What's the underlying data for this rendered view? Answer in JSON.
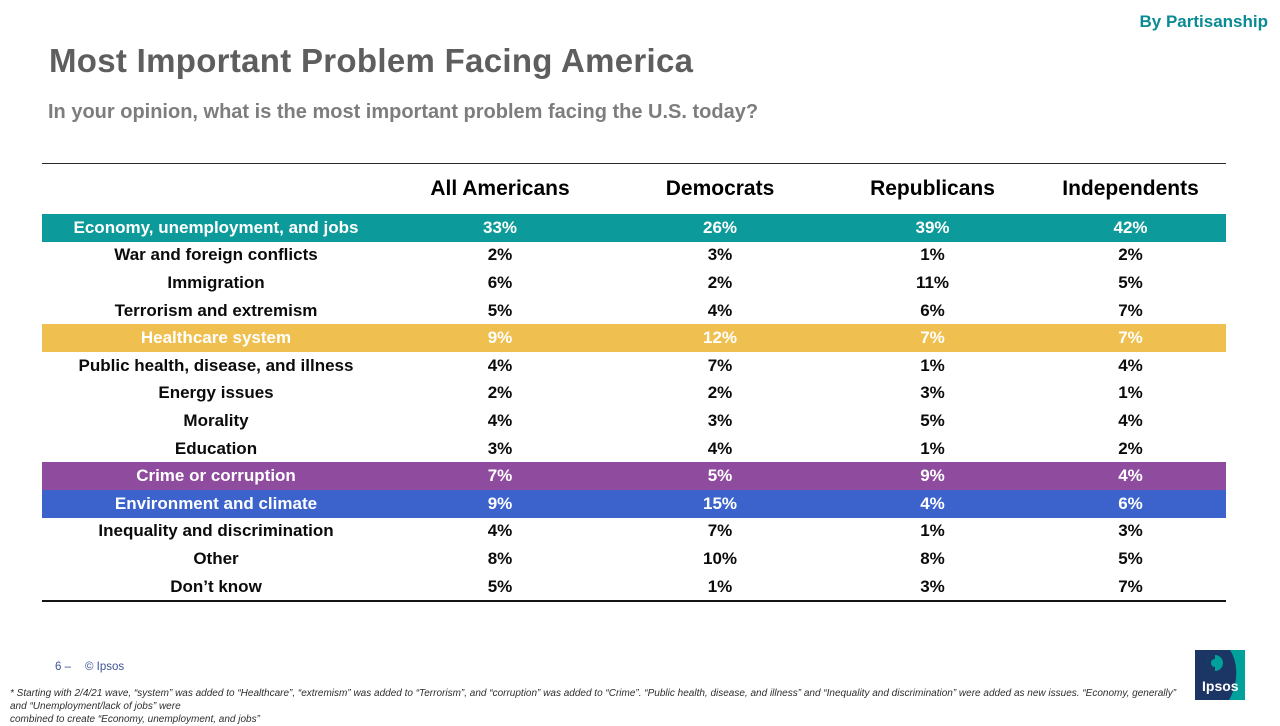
{
  "badge": {
    "label": "By Partisanship"
  },
  "header": {
    "title": "Most Important Problem Facing America",
    "subtitle": "In your opinion, what is the most important problem facing the U.S. today?"
  },
  "chart_data": {
    "type": "table",
    "title": "Most Important Problem Facing America",
    "columns": [
      "All Americans",
      "Democrats",
      "Republicans",
      "Independents"
    ],
    "rows": [
      {
        "label": "Economy, unemployment, and jobs",
        "values": [
          "33%",
          "26%",
          "39%",
          "42%"
        ],
        "highlight": "#0C9B9A"
      },
      {
        "label": "War and foreign conflicts",
        "values": [
          "2%",
          "3%",
          "1%",
          "2%"
        ],
        "highlight": null
      },
      {
        "label": "Immigration",
        "values": [
          "6%",
          "2%",
          "11%",
          "5%"
        ],
        "highlight": null
      },
      {
        "label": "Terrorism and extremism",
        "values": [
          "5%",
          "4%",
          "6%",
          "7%"
        ],
        "highlight": null
      },
      {
        "label": "Healthcare system",
        "values": [
          "9%",
          "12%",
          "7%",
          "7%"
        ],
        "highlight": "#EFC04F"
      },
      {
        "label": "Public health, disease, and illness",
        "values": [
          "4%",
          "7%",
          "1%",
          "4%"
        ],
        "highlight": null
      },
      {
        "label": "Energy issues",
        "values": [
          "2%",
          "2%",
          "3%",
          "1%"
        ],
        "highlight": null
      },
      {
        "label": "Morality",
        "values": [
          "4%",
          "3%",
          "5%",
          "4%"
        ],
        "highlight": null
      },
      {
        "label": "Education",
        "values": [
          "3%",
          "4%",
          "1%",
          "2%"
        ],
        "highlight": null
      },
      {
        "label": "Crime or corruption",
        "values": [
          "7%",
          "5%",
          "9%",
          "4%"
        ],
        "highlight": "#8F4C9E"
      },
      {
        "label": "Environment and climate",
        "values": [
          "9%",
          "15%",
          "4%",
          "6%"
        ],
        "highlight": "#3C63CC"
      },
      {
        "label": "Inequality and discrimination",
        "values": [
          "4%",
          "7%",
          "1%",
          "3%"
        ],
        "highlight": null
      },
      {
        "label": "Other",
        "values": [
          "8%",
          "10%",
          "8%",
          "5%"
        ],
        "highlight": null
      },
      {
        "label": "Don’t know",
        "values": [
          "5%",
          "1%",
          "3%",
          "7%"
        ],
        "highlight": null
      }
    ]
  },
  "footer": {
    "page_label": "6 –",
    "copyright": "© Ipsos",
    "footnote_line1": "* Starting with 2/4/21 wave, “system” was added to “Healthcare”, “extremism” was added to “Terrorism”, and “corruption” was added to “Crime”. “Public health, disease, and illness” and “Inequality and discrimination” were added as new issues. “Economy, generally” and “Unemployment/lack of jobs” were",
    "footnote_line2": "combined to create “Economy, unemployment, and jobs”",
    "logo_text": "Ipsos"
  },
  "colors": {
    "accent_teal": "#0A8A92",
    "title_gray": "#5E5E5E",
    "subtitle_gray": "#7D7D7D",
    "highlight_teal": "#0C9B9A",
    "highlight_yellow": "#EFC04F",
    "highlight_purple": "#8F4C9E",
    "highlight_blue": "#3C63CC",
    "logo_navy": "#1B3664",
    "logo_teal": "#00A19A"
  }
}
